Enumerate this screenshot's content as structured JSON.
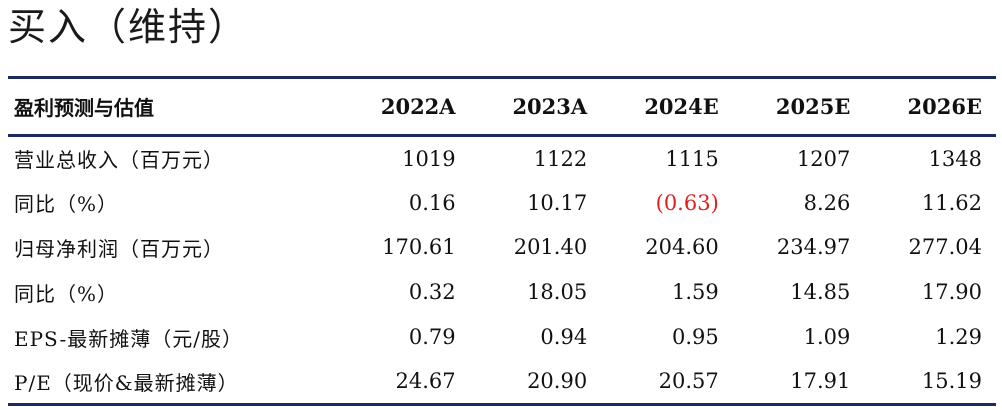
{
  "rating": "买入（维持）",
  "table": {
    "header": {
      "label": "盈利预测与估值",
      "years": [
        "2022A",
        "2023A",
        "2024E",
        "2025E",
        "2026E"
      ]
    },
    "rows": [
      {
        "label": "营业总收入（百万元）",
        "values": [
          "1019",
          "1122",
          "1115",
          "1207",
          "1348"
        ]
      },
      {
        "label": "同比（%）",
        "values": [
          "0.16",
          "10.17",
          "(0.63)",
          "8.26",
          "11.62"
        ]
      },
      {
        "label": "归母净利润（百万元）",
        "values": [
          "170.61",
          "201.40",
          "204.60",
          "234.97",
          "277.04"
        ]
      },
      {
        "label": "同比（%）",
        "values": [
          "0.32",
          "18.05",
          "1.59",
          "14.85",
          "17.90"
        ]
      },
      {
        "label": "EPS-最新摊薄（元/股）",
        "values": [
          "0.79",
          "0.94",
          "0.95",
          "1.09",
          "1.29"
        ]
      },
      {
        "label": "P/E（现价&最新摊薄）",
        "values": [
          "24.67",
          "20.90",
          "20.57",
          "17.91",
          "15.19"
        ]
      }
    ],
    "negative_color": "#e02020",
    "rule_color": "#1d2b5c"
  }
}
